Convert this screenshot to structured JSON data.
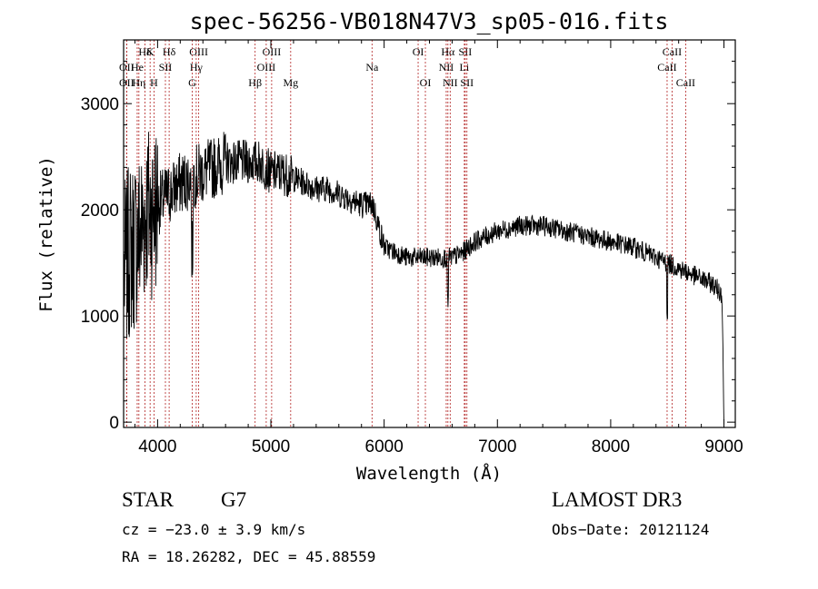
{
  "chart_data": {
    "type": "line",
    "title": "spec-56256-VB018N47V3_sp05-016.fits",
    "xlabel": "Wavelength (Å)",
    "ylabel": "Flux (relative)",
    "xlim": [
      3700,
      9100
    ],
    "ylim": [
      -50,
      3600
    ],
    "xticks": [
      4000,
      5000,
      6000,
      7000,
      8000,
      9000
    ],
    "yticks": [
      0,
      1000,
      2000,
      3000
    ],
    "spectrum": {
      "name": "flux",
      "anchors_x": [
        3700,
        3750,
        3800,
        3850,
        3900,
        3950,
        4000,
        4050,
        4100,
        4200,
        4300,
        4400,
        4500,
        4600,
        4700,
        4800,
        4900,
        5000,
        5100,
        5200,
        5300,
        5400,
        5500,
        5600,
        5700,
        5800,
        5900,
        6000,
        6100,
        6200,
        6300,
        6400,
        6500,
        6600,
        6700,
        6800,
        6900,
        7000,
        7200,
        7400,
        7600,
        7800,
        8000,
        8200,
        8400,
        8500,
        8600,
        8700,
        8800,
        8900,
        8990,
        9005
      ],
      "anchors_y": [
        1400,
        1600,
        1700,
        1800,
        2000,
        2000,
        2050,
        2100,
        2150,
        2250,
        2300,
        2350,
        2400,
        2450,
        2450,
        2450,
        2450,
        2350,
        2350,
        2300,
        2250,
        2200,
        2200,
        2150,
        2100,
        2050,
        2050,
        1650,
        1600,
        1550,
        1550,
        1550,
        1550,
        1550,
        1600,
        1700,
        1750,
        1800,
        1850,
        1850,
        1800,
        1750,
        1700,
        1650,
        1550,
        1500,
        1450,
        1400,
        1350,
        1300,
        1200,
        400
      ]
    },
    "spectral_lines": [
      {
        "label": "Hδ",
        "wavelength": 3889
      },
      {
        "label": "K",
        "wavelength": 3934
      },
      {
        "label": "Hδ",
        "wavelength": 4102
      },
      {
        "label": "OIII",
        "wavelength": 4363
      },
      {
        "label": "OIII",
        "wavelength": 5007
      },
      {
        "label": "OI",
        "wavelength": 6300
      },
      {
        "label": "Hα",
        "wavelength": 6563
      },
      {
        "label": "SII",
        "wavelength": 6716
      },
      {
        "label": "CaII",
        "wavelength": 8542
      },
      {
        "label": "OII",
        "wavelength": 3727
      },
      {
        "label": "He",
        "wavelength": 3820
      },
      {
        "label": "SII",
        "wavelength": 4069
      },
      {
        "label": "Hγ",
        "wavelength": 4341
      },
      {
        "label": "OIII",
        "wavelength": 4959
      },
      {
        "label": "Na",
        "wavelength": 5893
      },
      {
        "label": "NII",
        "wavelength": 6548
      },
      {
        "label": "Li",
        "wavelength": 6708
      },
      {
        "label": "CaII",
        "wavelength": 8498
      },
      {
        "label": "OII",
        "wavelength": 3727
      },
      {
        "label": "Hη",
        "wavelength": 3835
      },
      {
        "label": "H",
        "wavelength": 3968
      },
      {
        "label": "G",
        "wavelength": 4305
      },
      {
        "label": "Hβ",
        "wavelength": 4861
      },
      {
        "label": "Mg",
        "wavelength": 5175
      },
      {
        "label": "OI",
        "wavelength": 6364
      },
      {
        "label": "NII",
        "wavelength": 6583
      },
      {
        "label": "SII",
        "wavelength": 6731
      },
      {
        "label": "CaII",
        "wavelength": 8662
      }
    ]
  },
  "info": {
    "class_label": "STAR",
    "subclass": "G7",
    "survey": "LAMOST DR3",
    "redshift": "cz = −23.0 ± 3.9 km/s",
    "obs_date": "Obs−Date: 20121124",
    "coords": "RA =  18.26282, DEC =  45.88559"
  }
}
